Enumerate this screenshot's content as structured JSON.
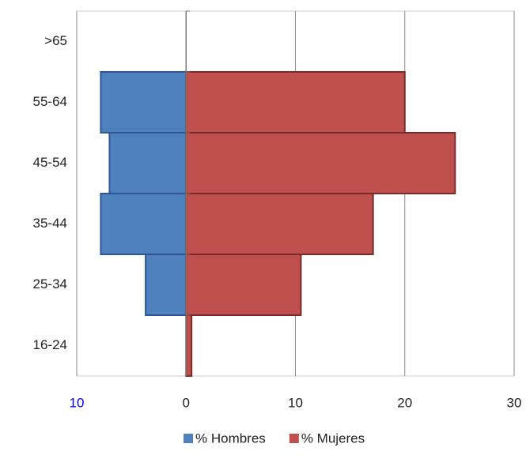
{
  "chart_data": {
    "type": "pyramid",
    "categories": [
      ">65",
      "55-64",
      "45-54",
      "35-44",
      "25-34",
      "16-24"
    ],
    "series": [
      {
        "name": "% Hombres",
        "color": "#4f81bd",
        "values": [
          0,
          -7.8,
          -7.0,
          -7.8,
          -3.7,
          0
        ]
      },
      {
        "name": "% Mujeres",
        "color": "#c0504d",
        "values": [
          0,
          20,
          24.6,
          17.1,
          10.5,
          0.5
        ]
      }
    ],
    "xlim": [
      -10,
      30
    ],
    "xticks": [
      {
        "value": -10,
        "label": "10"
      },
      0,
      10,
      20,
      30
    ],
    "grid": true,
    "legend": "bottom"
  }
}
